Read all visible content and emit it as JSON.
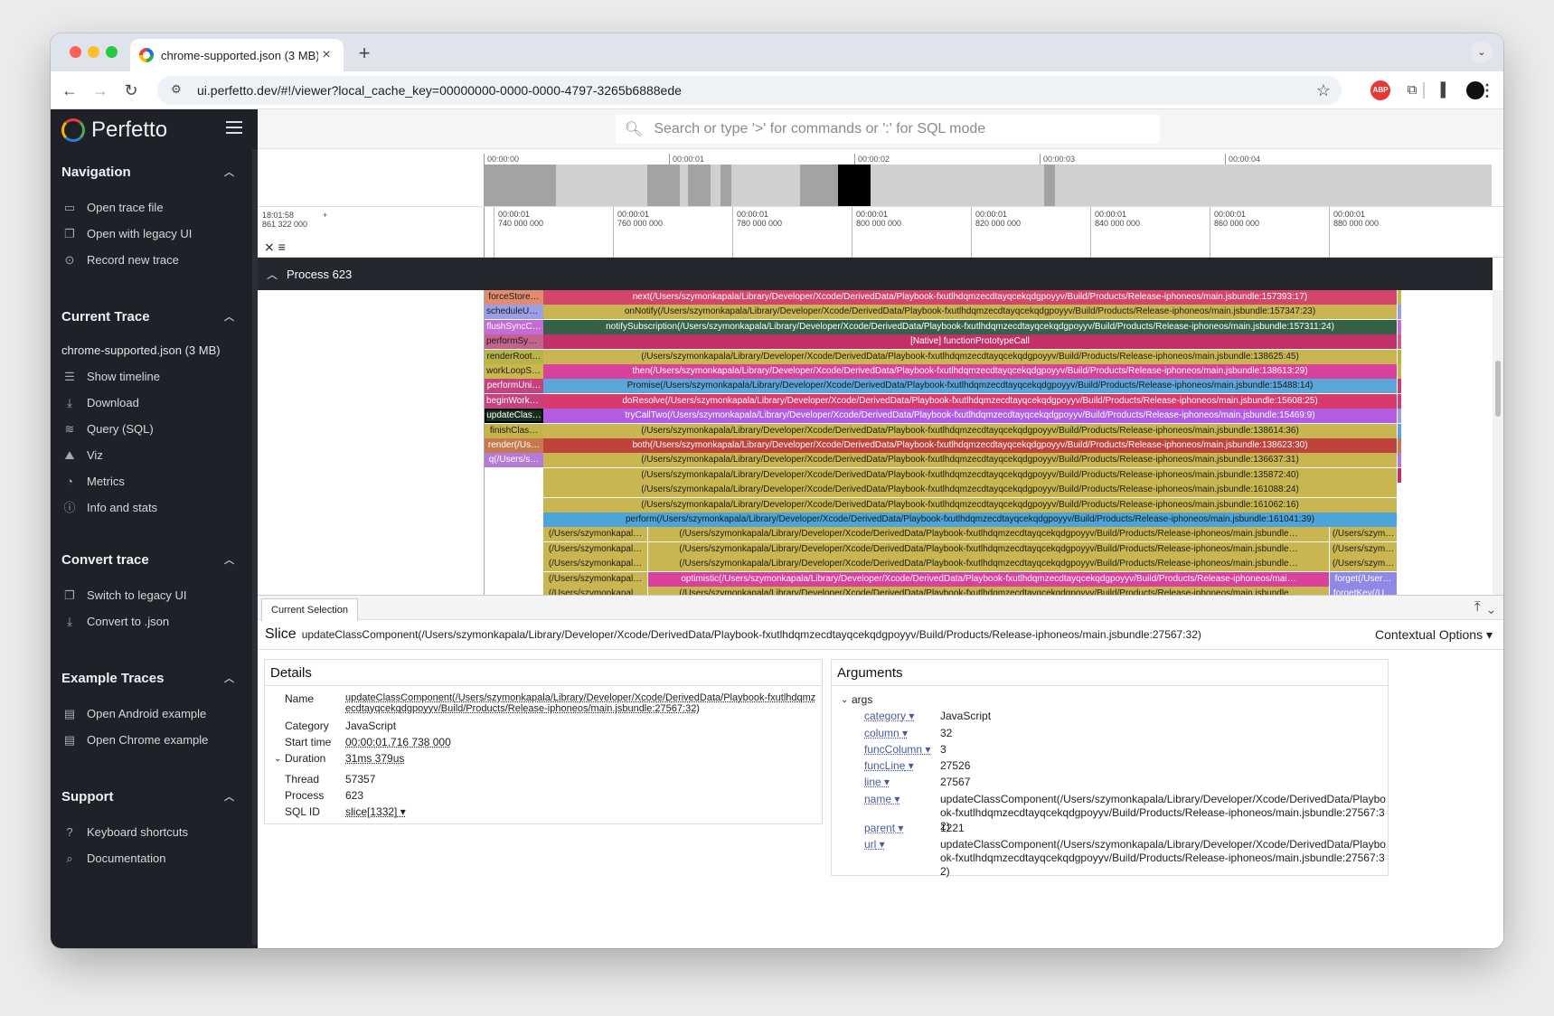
{
  "browser": {
    "tab_title": "chrome-supported.json (3 MB)",
    "url": "ui.perfetto.dev/#!/viewer?local_cache_key=00000000-0000-0000-4797-3265b6888ede"
  },
  "app": {
    "logo_text": "Perfetto",
    "search_placeholder": "Search or type '>' for commands or ':' for SQL mode"
  },
  "sidebar": {
    "navigation": {
      "title": "Navigation",
      "items": [
        "Open trace file",
        "Open with legacy UI",
        "Record new trace"
      ]
    },
    "current_trace": {
      "title": "Current Trace",
      "file": "chrome-supported.json (3 MB)",
      "items": [
        "Show timeline",
        "Download",
        "Query (SQL)",
        "Viz",
        "Metrics",
        "Info and stats"
      ]
    },
    "convert": {
      "title": "Convert trace",
      "items": [
        "Switch to legacy UI",
        "Convert to .json"
      ]
    },
    "examples": {
      "title": "Example Traces",
      "items": [
        "Open Android example",
        "Open Chrome example"
      ]
    },
    "support": {
      "title": "Support",
      "items": [
        "Keyboard shortcuts",
        "Documentation"
      ]
    }
  },
  "overview": {
    "ticks": [
      "00:00:00",
      "00:00:01",
      "00:00:02",
      "00:00:03",
      "00:00:04"
    ]
  },
  "timeline": {
    "left_label_line1": "18:01:58",
    "left_label_line2": "861 322 000",
    "ticks": [
      {
        "a": "00:00:01",
        "b": "740 000 000"
      },
      {
        "a": "00:00:01",
        "b": "760 000 000"
      },
      {
        "a": "00:00:01",
        "b": "780 000 000"
      },
      {
        "a": "00:00:01",
        "b": "800 000 000"
      },
      {
        "a": "00:00:01",
        "b": "820 000 000"
      },
      {
        "a": "00:00:01",
        "b": "840 000 000"
      },
      {
        "a": "00:00:01",
        "b": "860 000 000"
      },
      {
        "a": "00:00:01",
        "b": "880 000 000"
      }
    ]
  },
  "process_label": "Process 623",
  "slices": {
    "left": [
      "forceStore…",
      "scheduleUp…",
      "flushSyncC…",
      "performSyn…",
      "renderRoot…",
      "workLoopSy…",
      "performUni…",
      "beginWork$…",
      "updateClas…",
      "finishClas…",
      "render(/Us…",
      "q(/Users/s…"
    ],
    "main": [
      "next(/Users/szymonkapala/Library/Developer/Xcode/DerivedData/Playbook-fxutlhdqmzecdtayqcekqdgpoyyv/Build/Products/Release-iphoneos/main.jsbundle:157393:17)",
      "onNotify(/Users/szymonkapala/Library/Developer/Xcode/DerivedData/Playbook-fxutlhdqmzecdtayqcekqdgpoyyv/Build/Products/Release-iphoneos/main.jsbundle:157347:23)",
      "notifySubscription(/Users/szymonkapala/Library/Developer/Xcode/DerivedData/Playbook-fxutlhdqmzecdtayqcekqdgpoyyv/Build/Products/Release-iphoneos/main.jsbundle:157311:24)",
      "[Native] functionPrototypeCall",
      "(/Users/szymonkapala/Library/Developer/Xcode/DerivedData/Playbook-fxutlhdqmzecdtayqcekqdgpoyyv/Build/Products/Release-iphoneos/main.jsbundle:138625:45)",
      "then(/Users/szymonkapala/Library/Developer/Xcode/DerivedData/Playbook-fxutlhdqmzecdtayqcekqdgpoyyv/Build/Products/Release-iphoneos/main.jsbundle:138613:29)",
      "Promise(/Users/szymonkapala/Library/Developer/Xcode/DerivedData/Playbook-fxutlhdqmzecdtayqcekqdgpoyyv/Build/Products/Release-iphoneos/main.jsbundle:15488:14)",
      "doResolve(/Users/szymonkapala/Library/Developer/Xcode/DerivedData/Playbook-fxutlhdqmzecdtayqcekqdgpoyyv/Build/Products/Release-iphoneos/main.jsbundle:15608:25)",
      "tryCallTwo(/Users/szymonkapala/Library/Developer/Xcode/DerivedData/Playbook-fxutlhdqmzecdtayqcekqdgpoyyv/Build/Products/Release-iphoneos/main.jsbundle:15469:9)",
      "(/Users/szymonkapala/Library/Developer/Xcode/DerivedData/Playbook-fxutlhdqmzecdtayqcekqdgpoyyv/Build/Products/Release-iphoneos/main.jsbundle:138614:36)",
      "both(/Users/szymonkapala/Library/Developer/Xcode/DerivedData/Playbook-fxutlhdqmzecdtayqcekqdgpoyyv/Build/Products/Release-iphoneos/main.jsbundle:138623:30)",
      "(/Users/szymonkapala/Library/Developer/Xcode/DerivedData/Playbook-fxutlhdqmzecdtayqcekqdgpoyyv/Build/Products/Release-iphoneos/main.jsbundle:136637:31)",
      "(/Users/szymonkapala/Library/Developer/Xcode/DerivedData/Playbook-fxutlhdqmzecdtayqcekqdgpoyyv/Build/Products/Release-iphoneos/main.jsbundle:135872:40)",
      "(/Users/szymonkapala/Library/Developer/Xcode/DerivedData/Playbook-fxutlhdqmzecdtayqcekqdgpoyyv/Build/Products/Release-iphoneos/main.jsbundle:161088:24)",
      "(/Users/szymonkapala/Library/Developer/Xcode/DerivedData/Playbook-fxutlhdqmzecdtayqcekqdgpoyyv/Build/Products/Release-iphoneos/main.jsbundle:161062:16)",
      "perform(/Users/szymonkapala/Library/Developer/Xcode/DerivedData/Playbook-fxutlhdqmzecdtayqcekqdgpoyyv/Build/Products/Release-iphoneos/main.jsbundle:161041:39)"
    ],
    "split_left": [
      "(/Users/szymonkapal…",
      "(/Users/szymonkapal…",
      "(/Users/szymonkapal…",
      "(/Users/szymonkapal…",
      "(/Users/szymonkapal…"
    ],
    "split_mid": [
      "(/Users/szymonkapala/Library/Developer/Xcode/DerivedData/Playbook-fxutlhdqmzecdtayqcekqdgpoyyv/Build/Products/Release-iphoneos/main.jsbundle…",
      "(/Users/szymonkapala/Library/Developer/Xcode/DerivedData/Playbook-fxutlhdqmzecdtayqcekqdgpoyyv/Build/Products/Release-iphoneos/main.jsbundle…",
      "(/Users/szymonkapala/Library/Developer/Xcode/DerivedData/Playbook-fxutlhdqmzecdtayqcekqdgpoyyv/Build/Products/Release-iphoneos/main.jsbundle…",
      "optimistic(/Users/szymonkapala/Library/Developer/Xcode/DerivedData/Playbook-fxutlhdqmzecdtayqcekqdgpoyyv/Build/Products/Release-iphoneos/mai…",
      "(/Users/szymonkapala/Library/Developer/Xcode/DerivedData/Playbook-fxutlhdqmzecdtayqcekqdgpoyyv/Build/Products/Release-iphoneos/main.jsbundle…"
    ],
    "split_right": [
      "(/Users/szym…",
      "(/Users/szym…",
      "(/Users/szym…",
      "forget(/User…",
      "forgetKey(/U…"
    ]
  },
  "selection": {
    "tab": "Current Selection",
    "kind": "Slice",
    "name": "updateClassComponent(/Users/szymonkapala/Library/Developer/Xcode/DerivedData/Playbook-fxutlhdqmzecdtayqcekqdgpoyyv/Build/Products/Release-iphoneos/main.jsbundle:27567:32)",
    "contextual": "Contextual Options",
    "details": {
      "title": "Details",
      "name_label": "Name",
      "name_value": "updateClassComponent(/Users/szymonkapala/Library/Developer/Xcode/DerivedData/Playbook-fxutlhdqmzecdtayqcekqdgpoyyv/Build/Products/Release-iphoneos/main.jsbundle:27567:32)",
      "category_label": "Category",
      "category_value": "JavaScript",
      "start_label": "Start time",
      "start_value": "00:00:01.716 738 000",
      "duration_label": "Duration",
      "duration_value": "31ms 379us",
      "thread_label": "Thread",
      "thread_value": "57357",
      "process_label": "Process",
      "process_value": "623",
      "sqlid_label": "SQL ID",
      "sqlid_value": "slice[1332]"
    },
    "arguments": {
      "title": "Arguments",
      "group": "args",
      "rows": [
        {
          "k": "category",
          "v": "JavaScript"
        },
        {
          "k": "column",
          "v": "32"
        },
        {
          "k": "funcColumn",
          "v": "3"
        },
        {
          "k": "funcLine",
          "v": "27526"
        },
        {
          "k": "line",
          "v": "27567"
        },
        {
          "k": "name",
          "v": "updateClassComponent(/Users/szymonkapala/Library/Developer/Xcode/DerivedData/Playbook-fxutlhdqmzecdtayqcekqdgpoyyv/Build/Products/Release-iphoneos/main.jsbundle:27567:32)"
        },
        {
          "k": "parent",
          "v": "1221"
        },
        {
          "k": "url",
          "v": "updateClassComponent(/Users/szymonkapala/Library/Developer/Xcode/DerivedData/Playbook-fxutlhdqmzecdtayqcekqdgpoyyv/Build/Products/Release-iphoneos/main.jsbundle:27567:32)"
        }
      ]
    }
  }
}
